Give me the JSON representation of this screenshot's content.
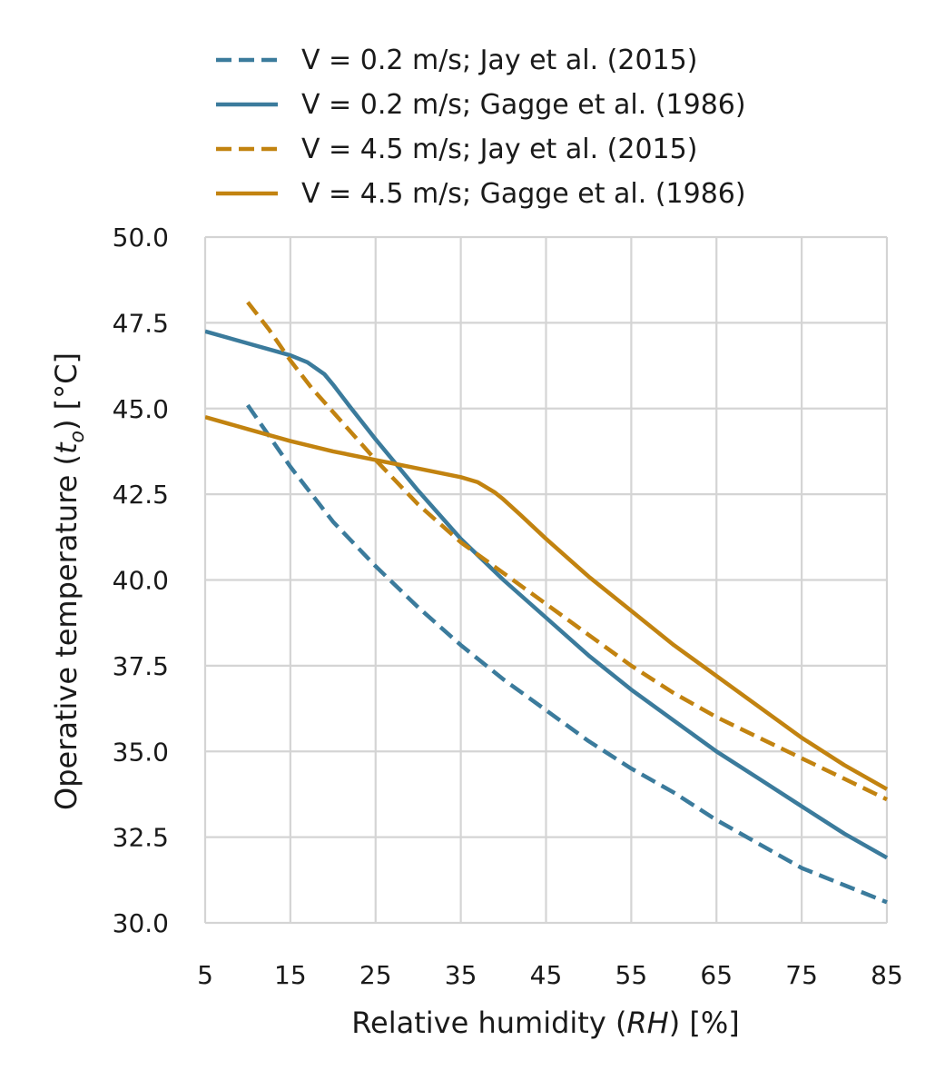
{
  "chart_data": {
    "type": "line",
    "xlabel": {
      "pre": "Relative humidity (",
      "sym": "RH",
      "post": ") [%]"
    },
    "ylabel": {
      "pre": "Operative temperature (",
      "sym": "t",
      "sub": "o",
      "post": ") [°C]"
    },
    "xlim": [
      5,
      85
    ],
    "ylim": [
      30,
      50
    ],
    "xticks": [
      5,
      15,
      25,
      35,
      45,
      55,
      65,
      75,
      85
    ],
    "xtick_labels": [
      "5",
      "15",
      "25",
      "35",
      "45",
      "55",
      "65",
      "75",
      "85"
    ],
    "yticks": [
      30,
      32.5,
      35,
      37.5,
      40,
      42.5,
      45,
      47.5,
      50
    ],
    "ytick_labels": [
      "30.0",
      "32.5",
      "35.0",
      "37.5",
      "40.0",
      "42.5",
      "45.0",
      "47.5",
      "50.0"
    ],
    "grid": true,
    "legend_position": "top",
    "series": [
      {
        "name": "V = 0.2 m/s; Jay et al. (2015)",
        "color": "#3b7b9c",
        "style": "dashed",
        "x": [
          10,
          12.5,
          15,
          17.5,
          20,
          25,
          30,
          35,
          40,
          45,
          50,
          55,
          60,
          65,
          70,
          75,
          80,
          85
        ],
        "y": [
          45.1,
          44.2,
          43.3,
          42.5,
          41.7,
          40.4,
          39.2,
          38.1,
          37.1,
          36.2,
          35.3,
          34.5,
          33.8,
          33.0,
          32.3,
          31.6,
          31.1,
          30.6
        ]
      },
      {
        "name": "V = 0.2 m/s; Gagge et al. (1986)",
        "color": "#3b7b9c",
        "style": "solid",
        "x": [
          5,
          10,
          15,
          17,
          19,
          20,
          22,
          25,
          30,
          35,
          40,
          45,
          50,
          55,
          60,
          65,
          70,
          75,
          80,
          85
        ],
        "y": [
          47.25,
          46.9,
          46.55,
          46.35,
          46.0,
          45.7,
          45.05,
          44.1,
          42.6,
          41.2,
          40.0,
          38.9,
          37.8,
          36.8,
          35.9,
          35.0,
          34.2,
          33.4,
          32.6,
          31.9
        ]
      },
      {
        "name": "V = 4.5 m/s; Jay et al. (2015)",
        "color": "#c28310",
        "style": "dashed",
        "x": [
          10,
          12.5,
          15,
          17.5,
          20,
          25,
          30,
          35,
          40,
          45,
          50,
          55,
          60,
          65,
          70,
          75,
          80,
          85
        ],
        "y": [
          48.1,
          47.3,
          46.4,
          45.6,
          44.9,
          43.5,
          42.2,
          41.1,
          40.2,
          39.3,
          38.4,
          37.5,
          36.7,
          36.0,
          35.4,
          34.8,
          34.2,
          33.6
        ]
      },
      {
        "name": "V = 4.5 m/s; Gagge et al. (1986)",
        "color": "#c28310",
        "style": "solid",
        "x": [
          5,
          10,
          15,
          20,
          25,
          30,
          35,
          37,
          39,
          40,
          42,
          45,
          50,
          55,
          60,
          65,
          70,
          75,
          80,
          85
        ],
        "y": [
          44.75,
          44.4,
          44.05,
          43.75,
          43.5,
          43.25,
          43.0,
          42.85,
          42.55,
          42.35,
          41.9,
          41.2,
          40.1,
          39.1,
          38.1,
          37.2,
          36.3,
          35.4,
          34.6,
          33.9
        ]
      }
    ]
  }
}
